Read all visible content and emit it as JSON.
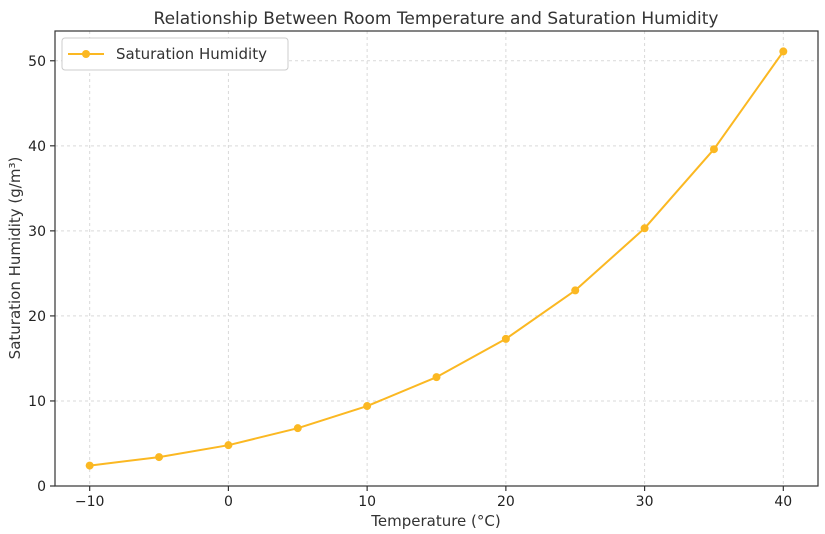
{
  "chart_data": {
    "type": "line",
    "title": "Relationship Between Room Temperature and Saturation Humidity",
    "xlabel": "Temperature (°C)",
    "ylabel": "Saturation Humidity (g/m³)",
    "x": [
      -10,
      -5,
      0,
      5,
      10,
      15,
      20,
      25,
      30,
      35,
      40
    ],
    "series": [
      {
        "name": "Saturation Humidity",
        "color": "#FBB822",
        "marker": "circle",
        "values": [
          2.4,
          3.4,
          4.8,
          6.8,
          9.4,
          12.8,
          17.3,
          23.0,
          30.3,
          39.6,
          51.1
        ]
      }
    ],
    "xlim": [
      -12.5,
      42.5
    ],
    "ylim": [
      0,
      53.5
    ],
    "xticks": [
      -10,
      0,
      10,
      20,
      30,
      40
    ],
    "xtick_labels": [
      "−10",
      "0",
      "10",
      "20",
      "30",
      "40"
    ],
    "yticks": [
      0,
      10,
      20,
      30,
      40,
      50
    ],
    "ytick_labels": [
      "0",
      "10",
      "20",
      "30",
      "40",
      "50"
    ],
    "grid": true,
    "legend_position": "top-left"
  }
}
